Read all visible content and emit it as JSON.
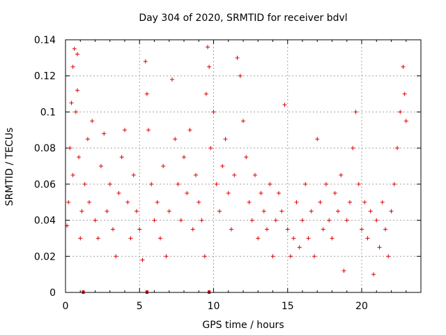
{
  "chart_data": {
    "type": "scatter",
    "title": "Day 304 of 2020, SRMTID for receiver bdvl",
    "xlabel": "GPS time / hours",
    "ylabel": "SRMTID / TECUs",
    "xlim": [
      0,
      24
    ],
    "ylim": [
      0,
      0.14
    ],
    "xticks": [
      0,
      5,
      10,
      15,
      20
    ],
    "yticks": [
      0,
      0.02,
      0.04,
      0.06,
      0.08,
      0.1,
      0.12,
      0.14
    ],
    "xtick_labels": [
      "0",
      "5",
      "10",
      "15",
      "20"
    ],
    "ytick_labels": [
      "0",
      "0.02",
      "0.04",
      "0.06",
      "0.08",
      "0.1",
      "0.12",
      "0.14"
    ],
    "grid": true,
    "marker": "plus",
    "color": "#dd0000",
    "baseline_markers_x": [
      1.2,
      5.5,
      9.7
    ],
    "series": [
      {
        "name": "SRMTID",
        "points": [
          [
            0.1,
            0.037
          ],
          [
            0.2,
            0.05
          ],
          [
            0.3,
            0.08
          ],
          [
            0.4,
            0.105
          ],
          [
            0.5,
            0.125
          ],
          [
            0.5,
            0.065
          ],
          [
            0.6,
            0.135
          ],
          [
            0.7,
            0.1
          ],
          [
            0.8,
            0.132
          ],
          [
            0.8,
            0.112
          ],
          [
            0.9,
            0.075
          ],
          [
            1.0,
            0.03
          ],
          [
            1.1,
            0.045
          ],
          [
            1.3,
            0.06
          ],
          [
            1.5,
            0.085
          ],
          [
            1.6,
            0.05
          ],
          [
            1.8,
            0.095
          ],
          [
            2.0,
            0.04
          ],
          [
            2.2,
            0.03
          ],
          [
            2.4,
            0.07
          ],
          [
            2.6,
            0.088
          ],
          [
            2.8,
            0.045
          ],
          [
            3.0,
            0.06
          ],
          [
            3.2,
            0.035
          ],
          [
            3.4,
            0.02
          ],
          [
            3.6,
            0.055
          ],
          [
            3.8,
            0.075
          ],
          [
            4.0,
            0.09
          ],
          [
            4.2,
            0.05
          ],
          [
            4.4,
            0.03
          ],
          [
            4.6,
            0.065
          ],
          [
            4.8,
            0.045
          ],
          [
            5.0,
            0.035
          ],
          [
            5.2,
            0.018
          ],
          [
            5.4,
            0.128
          ],
          [
            5.5,
            0.11
          ],
          [
            5.6,
            0.09
          ],
          [
            5.8,
            0.06
          ],
          [
            6.0,
            0.04
          ],
          [
            6.2,
            0.05
          ],
          [
            6.4,
            0.03
          ],
          [
            6.6,
            0.07
          ],
          [
            6.8,
            0.02
          ],
          [
            7.0,
            0.045
          ],
          [
            7.2,
            0.118
          ],
          [
            7.4,
            0.085
          ],
          [
            7.6,
            0.06
          ],
          [
            7.8,
            0.04
          ],
          [
            8.0,
            0.075
          ],
          [
            8.2,
            0.055
          ],
          [
            8.4,
            0.09
          ],
          [
            8.6,
            0.035
          ],
          [
            8.8,
            0.065
          ],
          [
            9.0,
            0.05
          ],
          [
            9.2,
            0.04
          ],
          [
            9.4,
            0.02
          ],
          [
            9.5,
            0.11
          ],
          [
            9.6,
            0.136
          ],
          [
            9.7,
            0.125
          ],
          [
            9.8,
            0.08
          ],
          [
            10.0,
            0.1
          ],
          [
            10.2,
            0.06
          ],
          [
            10.4,
            0.045
          ],
          [
            10.6,
            0.07
          ],
          [
            10.8,
            0.085
          ],
          [
            11.0,
            0.055
          ],
          [
            11.2,
            0.035
          ],
          [
            11.4,
            0.065
          ],
          [
            11.6,
            0.13
          ],
          [
            11.8,
            0.12
          ],
          [
            12.0,
            0.095
          ],
          [
            12.2,
            0.075
          ],
          [
            12.4,
            0.05
          ],
          [
            12.6,
            0.04
          ],
          [
            12.8,
            0.065
          ],
          [
            13.0,
            0.03
          ],
          [
            13.2,
            0.055
          ],
          [
            13.4,
            0.045
          ],
          [
            13.6,
            0.035
          ],
          [
            13.8,
            0.06
          ],
          [
            14.0,
            0.02
          ],
          [
            14.2,
            0.04
          ],
          [
            14.4,
            0.055
          ],
          [
            14.6,
            0.045
          ],
          [
            14.8,
            0.104
          ],
          [
            15.0,
            0.035
          ],
          [
            15.2,
            0.02
          ],
          [
            15.4,
            0.03
          ],
          [
            15.6,
            0.05
          ],
          [
            15.8,
            0.025
          ],
          [
            16.0,
            0.04
          ],
          [
            16.2,
            0.06
          ],
          [
            16.4,
            0.03
          ],
          [
            16.6,
            0.045
          ],
          [
            16.8,
            0.02
          ],
          [
            17.0,
            0.085
          ],
          [
            17.2,
            0.05
          ],
          [
            17.4,
            0.035
          ],
          [
            17.6,
            0.06
          ],
          [
            17.8,
            0.04
          ],
          [
            18.0,
            0.03
          ],
          [
            18.2,
            0.055
          ],
          [
            18.4,
            0.045
          ],
          [
            18.6,
            0.065
          ],
          [
            18.8,
            0.012
          ],
          [
            19.0,
            0.04
          ],
          [
            19.2,
            0.05
          ],
          [
            19.4,
            0.08
          ],
          [
            19.6,
            0.1
          ],
          [
            19.8,
            0.06
          ],
          [
            20.0,
            0.035
          ],
          [
            20.2,
            0.05
          ],
          [
            20.4,
            0.03
          ],
          [
            20.6,
            0.045
          ],
          [
            20.8,
            0.01
          ],
          [
            21.0,
            0.04
          ],
          [
            21.2,
            0.025
          ],
          [
            21.4,
            0.05
          ],
          [
            21.6,
            0.035
          ],
          [
            21.8,
            0.02
          ],
          [
            22.0,
            0.045
          ],
          [
            22.2,
            0.06
          ],
          [
            22.4,
            0.08
          ],
          [
            22.6,
            0.1
          ],
          [
            22.8,
            0.125
          ],
          [
            22.9,
            0.11
          ],
          [
            23.0,
            0.095
          ]
        ]
      }
    ]
  }
}
